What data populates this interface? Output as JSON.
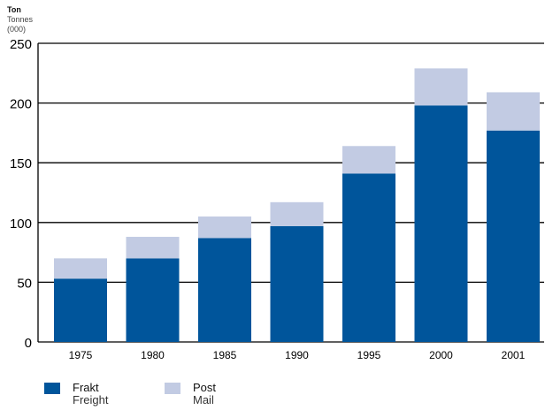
{
  "chart_data": {
    "type": "bar",
    "stacked": true,
    "unit_label": [
      "Ton",
      "Tonnes",
      "(000)"
    ],
    "categories": [
      "1975",
      "1980",
      "1985",
      "1990",
      "1995",
      "2000",
      "2001"
    ],
    "series": [
      {
        "name": "Frakt / Freight",
        "values": [
          53,
          70,
          87,
          97,
          141,
          198,
          177
        ],
        "color": "#00559b"
      },
      {
        "name": "Post / Mail",
        "values": [
          17,
          18,
          18,
          20,
          23,
          31,
          32
        ],
        "color": "#c2cbe3"
      }
    ],
    "yticks": [
      0,
      50,
      100,
      150,
      200,
      250
    ],
    "ylim": [
      0,
      250
    ],
    "grid": true
  },
  "legend": [
    {
      "label": "Frakt",
      "sublabel": "Freight",
      "color": "#00559b"
    },
    {
      "label": "Post",
      "sublabel": "Mail",
      "color": "#c2cbe3"
    }
  ]
}
